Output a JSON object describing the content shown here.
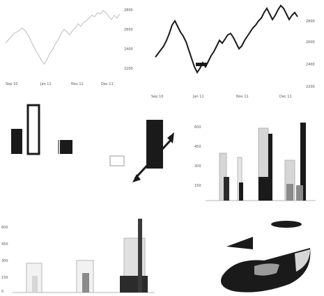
{
  "colors": {
    "ink": "#1a1a1a",
    "dark": "#2b2b2b",
    "mid": "#8a8a8a",
    "light": "#d6d6d6",
    "faint": "#b5b5b5",
    "paper": "#ffffff"
  },
  "line_faint": {
    "right_axis_ticks": [
      "2800",
      "2600",
      "2400",
      "2200"
    ],
    "x_ticks": [
      "Sep 10",
      "Jan 11",
      "Nov 11",
      "Dec 11"
    ]
  },
  "line_bold": {
    "right_axis_ticks": [
      "2800",
      "2600",
      "2400",
      "2200"
    ],
    "x_ticks": [
      "Sep 10",
      "Jan 11",
      "Nov 11",
      "Dec 11"
    ]
  },
  "panel3d": {
    "left_axis_ticks": [
      "600",
      "450",
      "300",
      "150"
    ]
  },
  "panel_bottom_left": {
    "left_axis_ticks": [
      "600",
      "450",
      "300",
      "150",
      "0"
    ]
  },
  "icons": [
    "bar-chart-icon",
    "line-chart-icon",
    "pie-chart-icon"
  ]
}
